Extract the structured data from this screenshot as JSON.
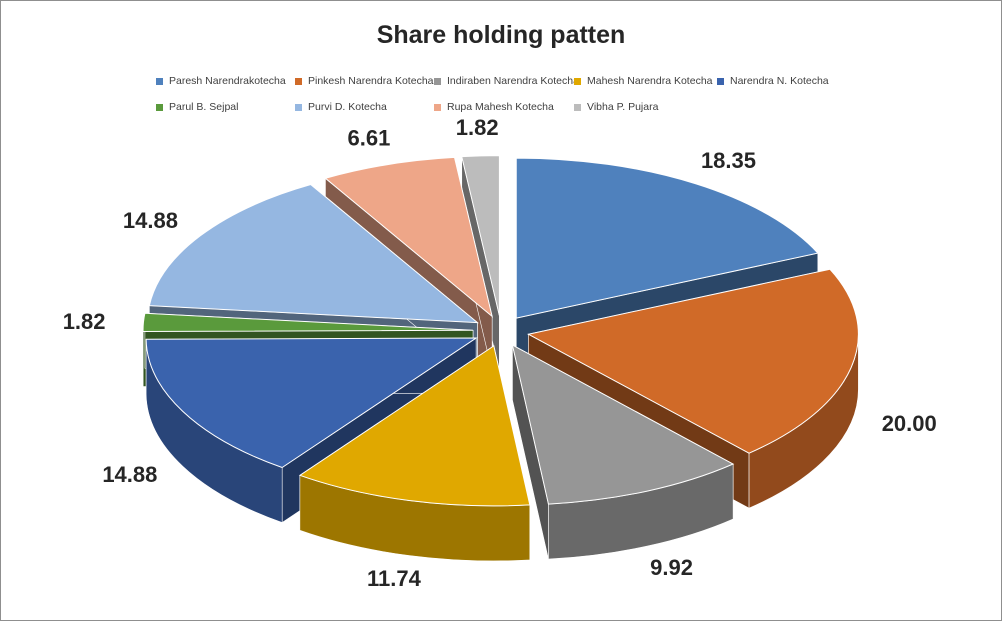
{
  "chart_data": {
    "type": "pie",
    "title": "Share holding patten",
    "legend_position": "top",
    "exploded": true,
    "three_d": true,
    "series": [
      {
        "name": "Paresh Narendrakotecha",
        "value": 18.35,
        "label": "18.35",
        "color": "#4f81bd"
      },
      {
        "name": "Pinkesh Narendra Kotecha",
        "value": 20.0,
        "label": "20.00",
        "color": "#d06a28"
      },
      {
        "name": "Indiraben Narendra Kotecha",
        "value": 9.92,
        "label": "9.92",
        "color": "#969696"
      },
      {
        "name": "Mahesh Narendra Kotecha",
        "value": 11.74,
        "label": "11.74",
        "color": "#e0a800"
      },
      {
        "name": "Narendra N. Kotecha",
        "value": 14.88,
        "label": "14.88",
        "color": "#3a63ad"
      },
      {
        "name": "Parul B. Sejpal",
        "value": 1.82,
        "label": "1.82",
        "color": "#5a9a3c"
      },
      {
        "name": "Purvi D. Kotecha",
        "value": 14.88,
        "label": "14.88",
        "color": "#95b7e1"
      },
      {
        "name": "Rupa Mahesh Kotecha",
        "value": 6.61,
        "label": "6.61",
        "color": "#eea688"
      },
      {
        "name": "Vibha P. Pujara",
        "value": 1.82,
        "label": "1.82",
        "color": "#bcbcbc"
      }
    ]
  }
}
